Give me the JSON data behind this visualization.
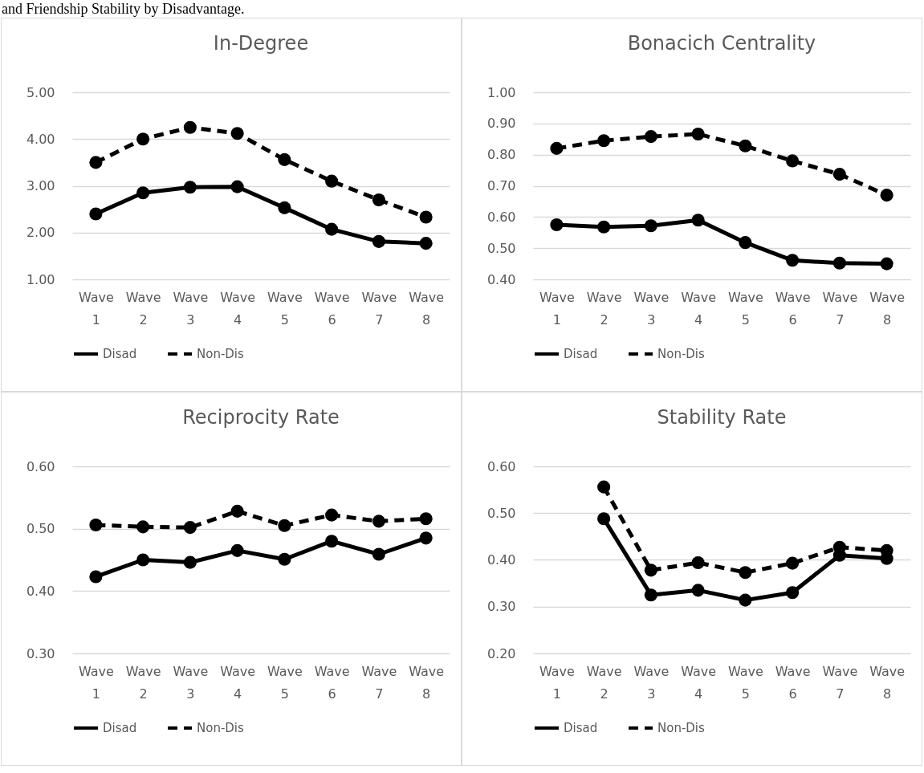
{
  "chart_data": [
    {
      "type": "line",
      "title": "In-Degree",
      "annotations": [
        "and Friendship Stability by Disadvantage."
      ],
      "categories": [
        "Wave 1",
        "Wave 2",
        "Wave 3",
        "Wave 4",
        "Wave 5",
        "Wave 6",
        "Wave 7",
        "Wave 8"
      ],
      "series": [
        {
          "name": "Disad",
          "color": "#000000",
          "line_style": "solid",
          "values": [
            2.4,
            2.85,
            2.97,
            2.98,
            2.53,
            2.07,
            1.81,
            1.77
          ]
        },
        {
          "name": "Non-Dis",
          "color": "#000000",
          "line_style": "dashed",
          "values": [
            3.5,
            4.0,
            4.25,
            4.12,
            3.56,
            3.1,
            2.7,
            2.33
          ]
        }
      ],
      "ylim": [
        1,
        5
      ],
      "yticks": [
        {
          "value": 1,
          "label": "1.00"
        },
        {
          "value": 2,
          "label": "2.00"
        },
        {
          "value": 3,
          "label": "3.00"
        },
        {
          "value": 4,
          "label": "4.00"
        },
        {
          "value": 5,
          "label": "5.00"
        }
      ],
      "grid": "y",
      "legend": "bottom",
      "marker": "circle"
    },
    {
      "type": "line",
      "title": "Bonacich Centrality",
      "categories": [
        "Wave 1",
        "Wave 2",
        "Wave 3",
        "Wave 4",
        "Wave 5",
        "Wave 6",
        "Wave 7",
        "Wave 8"
      ],
      "series": [
        {
          "name": "Disad",
          "color": "#000000",
          "line_style": "solid",
          "values": [
            0.575,
            0.568,
            0.572,
            0.59,
            0.518,
            0.461,
            0.452,
            0.45
          ]
        },
        {
          "name": "Non-Dis",
          "color": "#000000",
          "line_style": "dashed",
          "values": [
            0.82,
            0.845,
            0.858,
            0.866,
            0.828,
            0.78,
            0.737,
            0.67
          ]
        }
      ],
      "ylim": [
        0.4,
        1
      ],
      "yticks": [
        {
          "value": 0.4,
          "label": "0.40"
        },
        {
          "value": 0.5,
          "label": "0.50"
        },
        {
          "value": 0.6,
          "label": "0.60"
        },
        {
          "value": 0.7,
          "label": "0.70"
        },
        {
          "value": 0.8,
          "label": "0.80"
        },
        {
          "value": 0.9,
          "label": "0.90"
        },
        {
          "value": 1,
          "label": "1.00"
        }
      ],
      "grid": "y",
      "legend": "bottom",
      "marker": "circle"
    },
    {
      "type": "line",
      "title": "Reciprocity Rate",
      "categories": [
        "Wave 1",
        "Wave 2",
        "Wave 3",
        "Wave 4",
        "Wave 5",
        "Wave 6",
        "Wave 7",
        "Wave 8"
      ],
      "series": [
        {
          "name": "Disad",
          "color": "#000000",
          "line_style": "solid",
          "values": [
            0.423,
            0.45,
            0.446,
            0.465,
            0.451,
            0.48,
            0.459,
            0.485
          ]
        },
        {
          "name": "Non-Dis",
          "color": "#000000",
          "line_style": "dashed",
          "values": [
            0.506,
            0.503,
            0.502,
            0.528,
            0.505,
            0.522,
            0.512,
            0.516
          ]
        }
      ],
      "ylim": [
        0.3,
        0.6
      ],
      "yticks": [
        {
          "value": 0.3,
          "label": "0.30"
        },
        {
          "value": 0.4,
          "label": "0.40"
        },
        {
          "value": 0.5,
          "label": "0.50"
        },
        {
          "value": 0.6,
          "label": "0.60"
        }
      ],
      "grid": "y",
      "legend": "bottom",
      "marker": "circle"
    },
    {
      "type": "line",
      "title": "Stability Rate",
      "categories": [
        "Wave 1",
        "Wave 2",
        "Wave 3",
        "Wave 4",
        "Wave 5",
        "Wave 6",
        "Wave 7",
        "Wave 8"
      ],
      "series": [
        {
          "name": "Disad",
          "color": "#000000",
          "line_style": "solid",
          "values": [
            null,
            0.488,
            0.325,
            0.335,
            0.314,
            0.33,
            0.41,
            0.403
          ]
        },
        {
          "name": "Non-Dis",
          "color": "#000000",
          "line_style": "dashed",
          "values": [
            null,
            0.556,
            0.378,
            0.394,
            0.373,
            0.393,
            0.427,
            0.42
          ]
        }
      ],
      "ylim": [
        0.2,
        0.6
      ],
      "yticks": [
        {
          "value": 0.2,
          "label": "0.20"
        },
        {
          "value": 0.3,
          "label": "0.30"
        },
        {
          "value": 0.4,
          "label": "0.40"
        },
        {
          "value": 0.5,
          "label": "0.50"
        },
        {
          "value": 0.6,
          "label": "0.60"
        }
      ],
      "grid": "y",
      "legend": "bottom",
      "marker": "circle"
    }
  ]
}
